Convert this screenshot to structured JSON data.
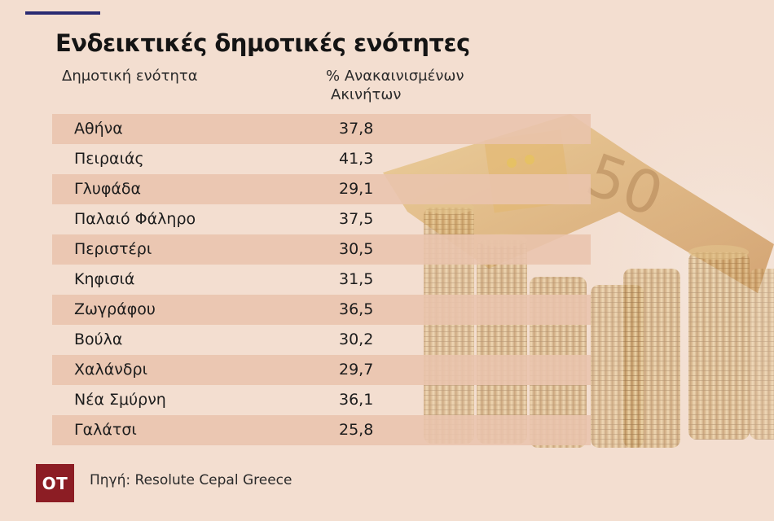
{
  "header": {
    "title": "Ενδεικτικές δημοτικές ενότητες"
  },
  "table": {
    "columns": {
      "area": "Δημοτική ενότητα",
      "percent_line1": "% Ανακαινισμένων",
      "percent_line2": "Ακινήτων"
    },
    "rows": [
      {
        "name": "Αθήνα",
        "value": "37,8"
      },
      {
        "name": "Πειραιάς",
        "value": "41,3"
      },
      {
        "name": "Γλυφάδα",
        "value": "29,1"
      },
      {
        "name": "Παλαιό Φάληρο",
        "value": "37,5"
      },
      {
        "name": "Περιστέρι",
        "value": "30,5"
      },
      {
        "name": "Κηφισιά",
        "value": "31,5"
      },
      {
        "name": "Ζωγράφου",
        "value": "36,5"
      },
      {
        "name": "Βούλα",
        "value": "30,2"
      },
      {
        "name": "Χαλάνδρι",
        "value": "29,7"
      },
      {
        "name": "Νέα Σμύρνη",
        "value": "36,1"
      },
      {
        "name": "Γαλάτσι",
        "value": "25,8"
      }
    ]
  },
  "footer": {
    "logo_text": "OT",
    "source": "Πηγή: Resolute Cepal Greece"
  },
  "colors": {
    "background": "#f3ded0",
    "row_shade": "#e9c4ad",
    "accent_line": "#2a2b72",
    "logo": "#8c1d24"
  },
  "icons": {
    "background_art": "euro-banknote-house-on-coin-stacks"
  }
}
